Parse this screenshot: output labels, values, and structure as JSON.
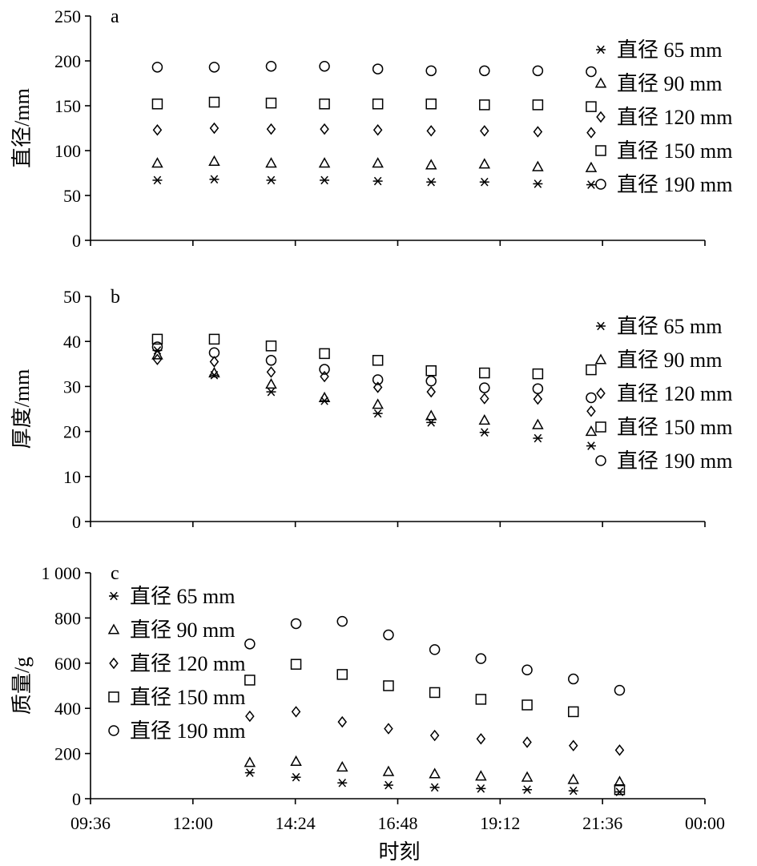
{
  "figure": {
    "x_axis_label": "时刻",
    "x_tick_labels": [
      "09:36",
      "12:00",
      "14:24",
      "16:48",
      "19:12",
      "21:36",
      "00:00"
    ],
    "series_names": [
      "直径 65 mm",
      "直径 90 mm",
      "直径 120 mm",
      "直径 150 mm",
      "直径 190 mm"
    ],
    "marker_icons": [
      "asterisk-marker",
      "triangle-marker",
      "diamond-marker",
      "square-marker",
      "circle-marker"
    ]
  },
  "chart_data": [
    {
      "type": "scatter",
      "panel_label": "a",
      "ylabel": "直径/mm",
      "ylim": [
        0,
        250
      ],
      "y_ticks": [
        0,
        50,
        100,
        150,
        200,
        250
      ],
      "y_tick_labels": [
        "0",
        "50",
        "100",
        "150",
        "200",
        "250"
      ],
      "xlim": [
        "09:36",
        "00:00"
      ],
      "legend_position": "right",
      "x": [
        "11:10",
        "12:30",
        "13:50",
        "15:05",
        "16:20",
        "17:35",
        "18:50",
        "20:05",
        "21:20"
      ],
      "series": [
        {
          "name": "直径 65 mm",
          "values": [
            67,
            68,
            67,
            67,
            66,
            65,
            65,
            63,
            62
          ]
        },
        {
          "name": "直径 90 mm",
          "values": [
            86,
            88,
            86,
            86,
            86,
            84,
            85,
            82,
            81
          ]
        },
        {
          "name": "直径 120 mm",
          "values": [
            123,
            125,
            124,
            124,
            123,
            122,
            122,
            121,
            120
          ]
        },
        {
          "name": "直径 150 mm",
          "values": [
            152,
            154,
            153,
            152,
            152,
            152,
            151,
            151,
            149
          ]
        },
        {
          "name": "直径 190 mm",
          "values": [
            193,
            193,
            194,
            194,
            191,
            189,
            189,
            189,
            188
          ]
        }
      ]
    },
    {
      "type": "scatter",
      "panel_label": "b",
      "ylabel": "厚度/mm",
      "ylim": [
        0,
        50
      ],
      "y_ticks": [
        0,
        10,
        20,
        30,
        40,
        50
      ],
      "y_tick_labels": [
        "0",
        "10",
        "20",
        "30",
        "40",
        "50"
      ],
      "xlim": [
        "09:36",
        "00:00"
      ],
      "legend_position": "right",
      "x": [
        "11:10",
        "12:30",
        "13:50",
        "15:05",
        "16:20",
        "17:35",
        "18:50",
        "20:05",
        "21:20"
      ],
      "series": [
        {
          "name": "直径 65 mm",
          "values": [
            38.0,
            32.5,
            28.8,
            26.8,
            24.0,
            22.0,
            19.8,
            18.5,
            16.8
          ]
        },
        {
          "name": "直径 90 mm",
          "values": [
            37.0,
            33.0,
            30.5,
            27.5,
            26.0,
            23.5,
            22.5,
            21.5,
            20.0
          ]
        },
        {
          "name": "直径 120 mm",
          "values": [
            36.0,
            35.5,
            33.2,
            32.2,
            29.8,
            28.8,
            27.3,
            27.2,
            24.5
          ]
        },
        {
          "name": "直径 150 mm",
          "values": [
            40.5,
            40.5,
            39.0,
            37.3,
            35.8,
            33.5,
            33.0,
            32.8,
            33.7
          ]
        },
        {
          "name": "直径 190 mm",
          "values": [
            38.8,
            37.5,
            35.8,
            33.8,
            31.5,
            31.2,
            29.7,
            29.5,
            27.5
          ]
        }
      ]
    },
    {
      "type": "scatter",
      "panel_label": "c",
      "ylabel": "质量/g",
      "ylim": [
        0,
        1000
      ],
      "y_ticks": [
        0,
        200,
        400,
        600,
        800,
        1000
      ],
      "y_tick_labels": [
        "0",
        "200",
        "400",
        "600",
        "800",
        "1 000"
      ],
      "xlim": [
        "09:36",
        "00:00"
      ],
      "legend_position": "top-left",
      "x": [
        "13:20",
        "14:25",
        "15:30",
        "16:35",
        "17:40",
        "18:45",
        "19:50",
        "20:55",
        "22:00"
      ],
      "series": [
        {
          "name": "直径 65 mm",
          "values": [
            115,
            95,
            70,
            60,
            50,
            45,
            40,
            35,
            30
          ]
        },
        {
          "name": "直径 90 mm",
          "values": [
            160,
            165,
            140,
            120,
            110,
            100,
            95,
            85,
            75
          ]
        },
        {
          "name": "直径 120 mm",
          "values": [
            365,
            385,
            340,
            310,
            280,
            265,
            250,
            235,
            215
          ]
        },
        {
          "name": "直径 150 mm",
          "values": [
            525,
            595,
            550,
            500,
            470,
            440,
            415,
            385,
            40
          ]
        },
        {
          "name": "直径 190 mm",
          "values": [
            685,
            775,
            785,
            725,
            660,
            620,
            570,
            530,
            480
          ]
        }
      ]
    }
  ]
}
